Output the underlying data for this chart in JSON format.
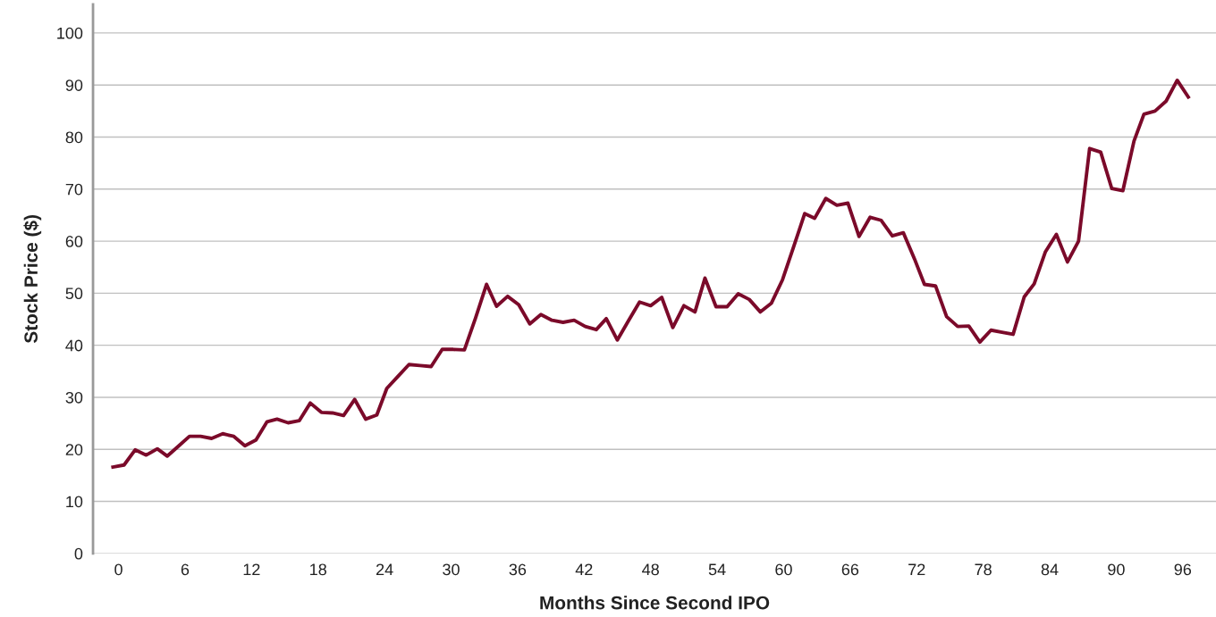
{
  "chart_data": {
    "type": "line",
    "xlabel": "Months Since Second IPO",
    "ylabel": "Stock Price ($)",
    "x": [
      -0.5,
      0.5,
      1.5,
      2.5,
      3.5,
      4.4,
      5.4,
      6.4,
      7.4,
      8.4,
      9.4,
      10.4,
      11.4,
      12.4,
      13.4,
      14.3,
      15.3,
      16.3,
      17.3,
      18.3,
      19.3,
      20.3,
      21.3,
      22.3,
      23.3,
      24.2,
      25.2,
      26.2,
      27.2,
      28.2,
      29.2,
      30.2,
      31.2,
      32.2,
      33.2,
      34.1,
      35.1,
      36.1,
      37.1,
      38.1,
      39.1,
      40.1,
      41.1,
      42.1,
      43.1,
      44.0,
      45.0,
      46.0,
      47.0,
      48.0,
      49.0,
      50.0,
      51.0,
      52.0,
      52.9,
      53.9,
      54.9,
      55.9,
      56.9,
      57.9,
      58.9,
      59.9,
      60.9,
      61.9,
      62.8,
      63.8,
      64.8,
      65.8,
      66.8,
      67.8,
      68.8,
      69.8,
      70.8,
      71.8,
      72.7,
      73.7,
      74.7,
      75.7,
      76.7,
      77.7,
      78.7,
      79.7,
      80.7,
      81.7,
      82.6,
      83.6,
      84.6,
      85.6,
      86.6,
      87.6,
      88.6,
      89.6,
      90.6,
      91.6,
      92.5,
      93.5,
      94.5,
      95.5,
      96.5
    ],
    "series": [
      {
        "color": "#7b0a2a",
        "values": [
          16.6,
          17.0,
          19.9,
          18.9,
          20.1,
          18.7,
          20.6,
          22.5,
          22.5,
          22.1,
          23.0,
          22.5,
          20.7,
          21.8,
          25.3,
          25.8,
          25.1,
          25.5,
          28.9,
          27.1,
          27.0,
          26.5,
          29.6,
          25.8,
          26.6,
          31.7,
          34.0,
          36.3,
          36.1,
          35.9,
          39.2,
          39.2,
          39.1,
          45.2,
          51.7,
          47.5,
          49.4,
          47.8,
          44.1,
          45.9,
          44.8,
          44.4,
          44.8,
          43.6,
          43.0,
          45.1,
          41.0,
          44.7,
          48.3,
          47.6,
          49.2,
          43.4,
          47.6,
          46.4,
          52.9,
          47.4,
          47.4,
          49.9,
          48.8,
          46.4,
          48.1,
          52.6,
          58.9,
          65.3,
          64.4,
          68.2,
          66.9,
          67.3,
          60.9,
          64.6,
          64.0,
          61.0,
          61.6,
          56.6,
          51.7,
          51.4,
          45.5,
          43.6,
          43.7,
          40.6,
          42.9,
          42.5,
          42.1,
          49.3,
          51.8,
          57.9,
          61.3,
          56.0,
          60.0,
          77.8,
          77.1,
          70.1,
          69.7,
          79.2,
          84.4,
          85.0,
          86.9,
          90.9,
          87.7
        ]
      }
    ],
    "xlim": [
      -2.3,
      99
    ],
    "xticks": [
      0,
      6,
      12,
      18,
      24,
      30,
      36,
      42,
      48,
      54,
      60,
      66,
      72,
      78,
      84,
      90,
      96
    ],
    "ylim": [
      0,
      105.5
    ],
    "yticks": [
      0,
      10,
      20,
      30,
      40,
      50,
      60,
      70,
      80,
      90,
      100
    ],
    "grid": "y"
  }
}
